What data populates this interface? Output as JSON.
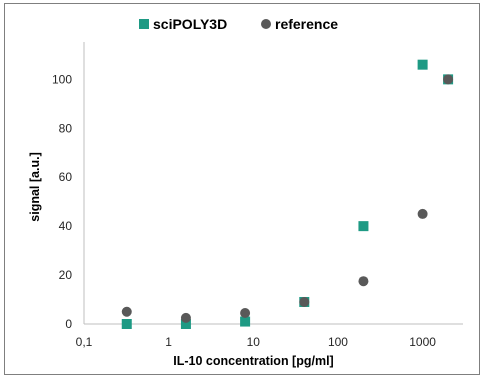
{
  "chart_data": {
    "type": "scatter",
    "title": "",
    "xlabel": "IL-10 concentration [pg/ml]",
    "ylabel": "signal [a.u.]",
    "x_scale": "log",
    "xlim": [
      0.1,
      3000
    ],
    "ylim": [
      0,
      112
    ],
    "x_ticks": [
      0.1,
      1,
      10,
      100,
      1000
    ],
    "x_tick_labels": [
      "0,1",
      "1",
      "10",
      "100",
      "1000"
    ],
    "y_ticks": [
      0,
      20,
      40,
      60,
      80,
      100
    ],
    "y_tick_labels": [
      "0",
      "20",
      "40",
      "60",
      "80",
      "100"
    ],
    "grid": false,
    "legend_position": "top",
    "series": [
      {
        "name": "sciPOLY3D",
        "marker": "square",
        "color": "#1e9a84",
        "x": [
          0.32,
          1.6,
          8,
          40,
          200,
          1000,
          2000
        ],
        "y": [
          0,
          0,
          1,
          9,
          40,
          106,
          100
        ]
      },
      {
        "name": "reference",
        "marker": "circle",
        "color": "#595959",
        "x": [
          0.32,
          1.6,
          8,
          40,
          200,
          1000,
          2000
        ],
        "y": [
          5,
          2.5,
          4.5,
          9,
          17.5,
          45,
          100
        ]
      }
    ]
  }
}
